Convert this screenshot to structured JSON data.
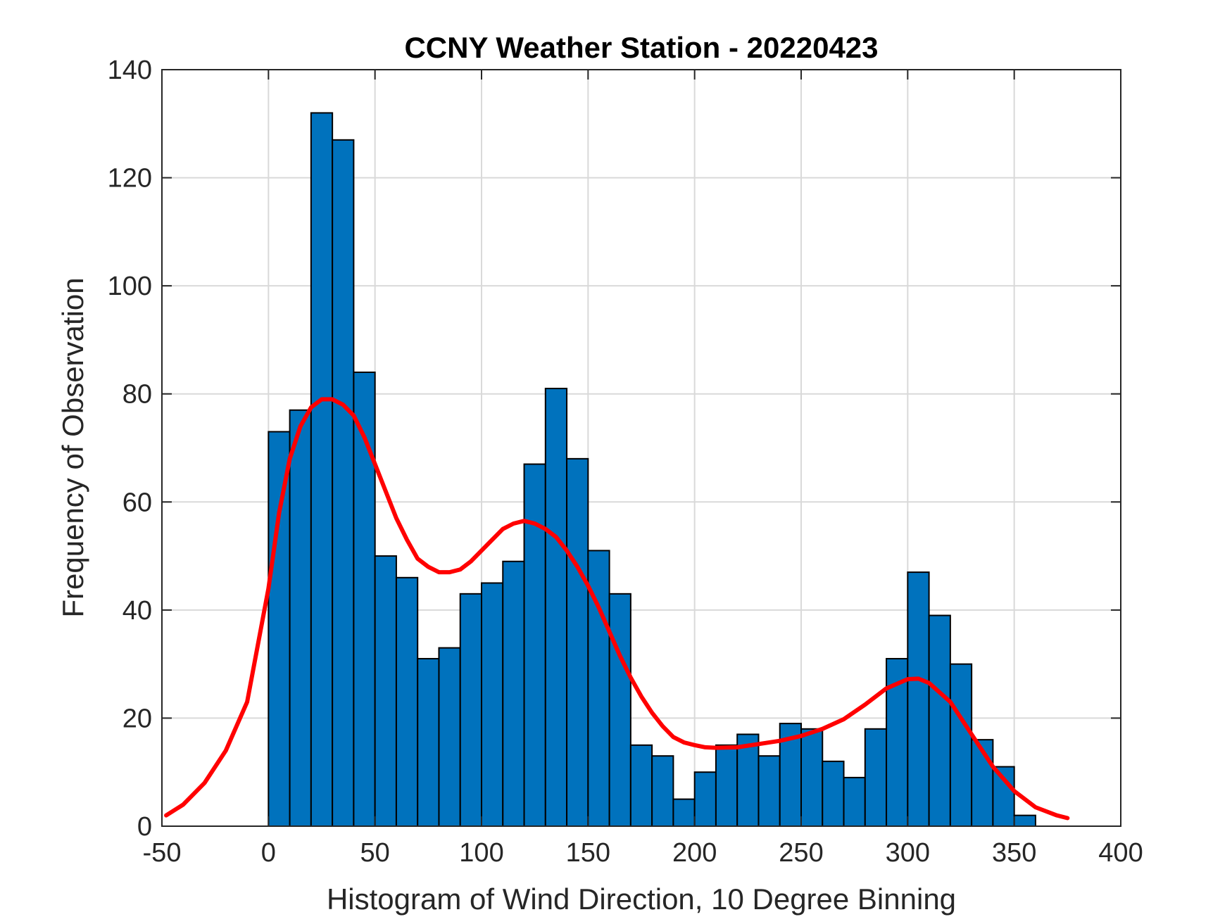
{
  "chart_data": {
    "type": "bar",
    "title": "CCNY Weather Station - 20220423",
    "xlabel": "Histogram of Wind Direction, 10 Degree Binning",
    "ylabel": "Frequency of Observation",
    "xlim": [
      -50,
      400
    ],
    "ylim": [
      0,
      140
    ],
    "xticks": [
      -50,
      0,
      50,
      100,
      150,
      200,
      250,
      300,
      350,
      400
    ],
    "yticks": [
      0,
      20,
      40,
      60,
      80,
      100,
      120,
      140
    ],
    "xtick_labels": [
      "-50",
      "0",
      "50",
      "100",
      "150",
      "200",
      "250",
      "300",
      "350",
      "400"
    ],
    "ytick_labels": [
      "0",
      "20",
      "40",
      "60",
      "80",
      "100",
      "120",
      "140"
    ],
    "grid": true,
    "bin_width": 10,
    "bin_edges": [
      0,
      10,
      20,
      30,
      40,
      50,
      60,
      70,
      80,
      90,
      100,
      110,
      120,
      130,
      140,
      150,
      160,
      170,
      180,
      190,
      200,
      210,
      220,
      230,
      240,
      250,
      260,
      270,
      280,
      290,
      300,
      310,
      320,
      330,
      340,
      350,
      360
    ],
    "values": [
      73,
      77,
      132,
      127,
      84,
      50,
      46,
      31,
      33,
      43,
      45,
      49,
      67,
      81,
      68,
      51,
      43,
      15,
      13,
      5,
      10,
      15,
      17,
      13,
      19,
      18,
      12,
      9,
      18,
      31,
      47,
      39,
      30,
      16,
      11,
      2
    ],
    "bar_color": "#0072BD",
    "bar_edge_color": "#000000",
    "fit_curve": {
      "type": "line",
      "color": "#FF0000",
      "x": [
        -48,
        -40,
        -30,
        -20,
        -10,
        0,
        5,
        10,
        15,
        20,
        25,
        30,
        35,
        40,
        45,
        50,
        55,
        60,
        65,
        70,
        75,
        80,
        85,
        90,
        95,
        100,
        105,
        110,
        115,
        120,
        125,
        130,
        135,
        140,
        145,
        150,
        155,
        160,
        165,
        170,
        175,
        180,
        185,
        190,
        195,
        200,
        205,
        210,
        220,
        230,
        240,
        250,
        260,
        270,
        280,
        290,
        300,
        305,
        310,
        320,
        330,
        340,
        350,
        360,
        370,
        375
      ],
      "y": [
        2,
        4,
        8,
        14,
        23,
        44,
        58,
        68,
        74,
        77.5,
        79,
        79,
        78,
        76,
        72,
        67,
        62,
        57,
        53,
        49.5,
        48,
        47,
        47,
        47.5,
        49,
        51,
        53,
        55,
        56,
        56.5,
        56,
        55,
        53.5,
        51,
        48,
        44.5,
        40.5,
        36,
        31.5,
        27.5,
        24,
        21,
        18.5,
        16.5,
        15.5,
        15,
        14.6,
        14.5,
        14.6,
        15.2,
        15.8,
        16.7,
        18,
        19.8,
        22.5,
        25.5,
        27.2,
        27.3,
        26.5,
        23,
        17,
        11,
        6.5,
        3.5,
        2,
        1.5
      ]
    }
  }
}
